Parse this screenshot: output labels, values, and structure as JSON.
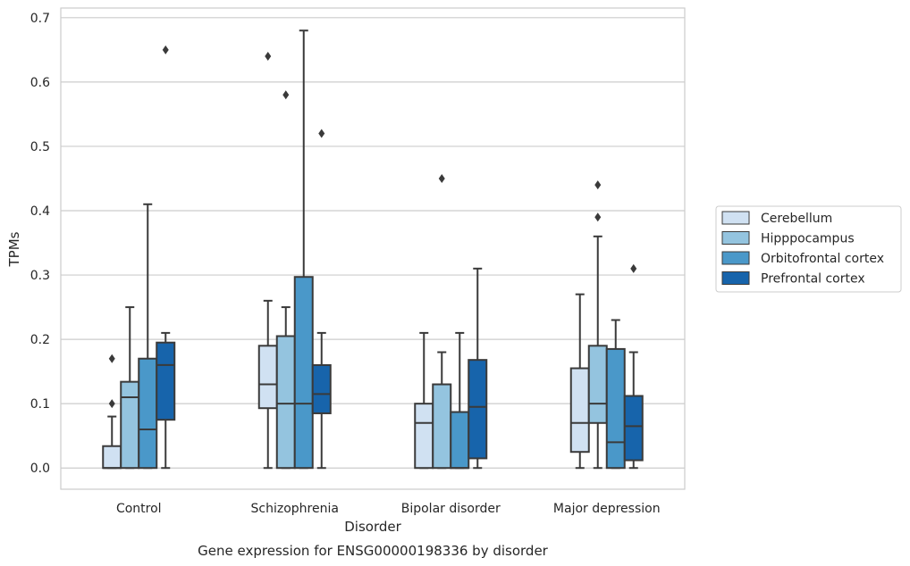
{
  "chart_data": {
    "type": "box",
    "title": "",
    "caption": "Gene expression for ENSG00000198336 by disorder",
    "xlabel": "Disorder",
    "ylabel": "TPMs",
    "ylim": [
      -0.033,
      0.715
    ],
    "yticks": [
      0.0,
      0.1,
      0.2,
      0.3,
      0.4,
      0.5,
      0.6,
      0.7
    ],
    "ytick_labels": [
      "0.0",
      "0.1",
      "0.2",
      "0.3",
      "0.4",
      "0.5",
      "0.6",
      "0.7"
    ],
    "grid": "horizontal",
    "legend_position": "right",
    "categories": [
      "Control",
      "Schizophrenia",
      "Bipolar disorder",
      "Major depression"
    ],
    "series": [
      {
        "name": "Cerebellum",
        "color": "#d0e1f2",
        "boxes": [
          {
            "whislo": 0.0,
            "q1": 0.0,
            "med": 0.0,
            "q3": 0.034,
            "whishi": 0.08,
            "fliers": [
              0.1,
              0.17
            ]
          },
          {
            "whislo": 0.0,
            "q1": 0.093,
            "med": 0.13,
            "q3": 0.19,
            "whishi": 0.26,
            "fliers": [
              0.64
            ]
          },
          {
            "whislo": 0.0,
            "q1": 0.0,
            "med": 0.07,
            "q3": 0.1,
            "whishi": 0.21,
            "fliers": []
          },
          {
            "whislo": 0.0,
            "q1": 0.025,
            "med": 0.07,
            "q3": 0.155,
            "whishi": 0.27,
            "fliers": []
          }
        ]
      },
      {
        "name": "Hipppocampus",
        "color": "#94c4df",
        "boxes": [
          {
            "whislo": 0.0,
            "q1": 0.0,
            "med": 0.11,
            "q3": 0.134,
            "whishi": 0.25,
            "fliers": []
          },
          {
            "whislo": 0.0,
            "q1": 0.0,
            "med": 0.1,
            "q3": 0.205,
            "whishi": 0.25,
            "fliers": [
              0.58
            ]
          },
          {
            "whislo": 0.0,
            "q1": 0.0,
            "med": 0.13,
            "q3": 0.13,
            "whishi": 0.18,
            "fliers": [
              0.45
            ]
          },
          {
            "whislo": 0.0,
            "q1": 0.07,
            "med": 0.1,
            "q3": 0.19,
            "whishi": 0.36,
            "fliers": [
              0.39,
              0.44
            ]
          }
        ]
      },
      {
        "name": "Orbitofrontal cortex",
        "color": "#4a98c9",
        "boxes": [
          {
            "whislo": 0.0,
            "q1": 0.0,
            "med": 0.06,
            "q3": 0.17,
            "whishi": 0.41,
            "fliers": []
          },
          {
            "whislo": 0.0,
            "q1": 0.0,
            "med": 0.1,
            "q3": 0.297,
            "whishi": 0.68,
            "fliers": []
          },
          {
            "whislo": 0.0,
            "q1": 0.0,
            "med": 0.0,
            "q3": 0.087,
            "whishi": 0.21,
            "fliers": []
          },
          {
            "whislo": 0.0,
            "q1": 0.0,
            "med": 0.04,
            "q3": 0.185,
            "whishi": 0.23,
            "fliers": []
          }
        ]
      },
      {
        "name": "Prefrontal cortex",
        "color": "#1764ab",
        "boxes": [
          {
            "whislo": 0.0,
            "q1": 0.075,
            "med": 0.16,
            "q3": 0.195,
            "whishi": 0.21,
            "fliers": [
              0.65
            ]
          },
          {
            "whislo": 0.0,
            "q1": 0.085,
            "med": 0.115,
            "q3": 0.16,
            "whishi": 0.21,
            "fliers": [
              0.52
            ]
          },
          {
            "whislo": 0.0,
            "q1": 0.015,
            "med": 0.095,
            "q3": 0.168,
            "whishi": 0.31,
            "fliers": []
          },
          {
            "whislo": 0.0,
            "q1": 0.012,
            "med": 0.065,
            "q3": 0.112,
            "whishi": 0.18,
            "fliers": [
              0.31
            ]
          }
        ]
      }
    ]
  }
}
